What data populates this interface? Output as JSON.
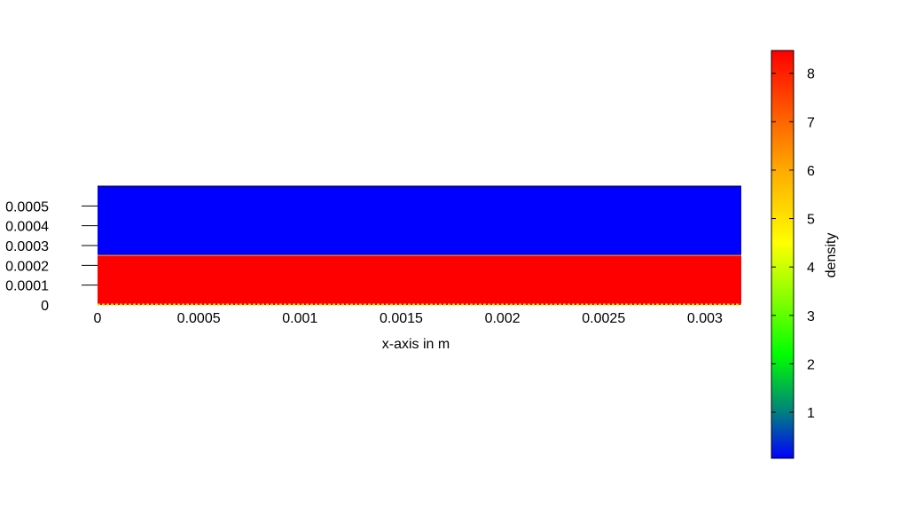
{
  "chart_data": {
    "type": "heatmap",
    "title": "",
    "xlabel": "x-axis in m",
    "ylabel": "",
    "xlim": [
      0,
      0.00318
    ],
    "ylim": [
      0,
      0.0006
    ],
    "xticks": [
      "0",
      "0.0005",
      "0.001",
      "0.0015",
      "0.002",
      "0.0025",
      "0.003"
    ],
    "xtick_values": [
      0,
      0.0005,
      0.001,
      0.0015,
      0.002,
      0.0025,
      0.003
    ],
    "yticks": [
      "0",
      "0.0001",
      "0.0002",
      "0.0003",
      "0.0004",
      "0.0005"
    ],
    "ytick_values": [
      0,
      0.0001,
      0.0002,
      0.0003,
      0.0004,
      0.0005
    ],
    "regions": [
      {
        "y_from": 0,
        "y_to": 0.00025,
        "density": 8.47
      },
      {
        "y_from": 0.00025,
        "y_to": 0.0006,
        "density": 0.05
      }
    ],
    "colorbar": {
      "label": "density",
      "range": [
        0.05,
        8.47
      ],
      "ticks": [
        "1",
        "2",
        "3",
        "4",
        "5",
        "6",
        "7",
        "8"
      ],
      "tick_values": [
        1,
        2,
        3,
        4,
        5,
        6,
        7,
        8
      ],
      "palette": [
        {
          "value": 0.05,
          "color": "#0000ff"
        },
        {
          "value": 1.0,
          "color": "#008080"
        },
        {
          "value": 2.2,
          "color": "#00ff00"
        },
        {
          "value": 3.3,
          "color": "#80ff00"
        },
        {
          "value": 4.5,
          "color": "#ffff00"
        },
        {
          "value": 6.0,
          "color": "#ffaa00"
        },
        {
          "value": 8.47,
          "color": "#ff0000"
        }
      ]
    },
    "grid": false
  }
}
